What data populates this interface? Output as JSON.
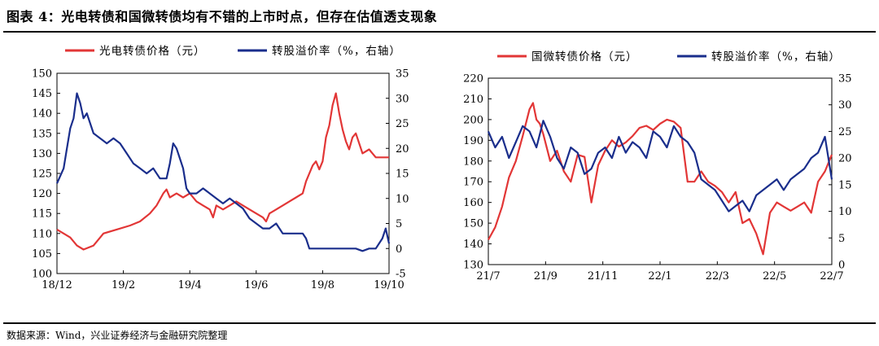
{
  "title": "图表 4：光电转债和国微转债均有不错的上市时点，但存在估值透支现象",
  "source": "数据来源：Wind，兴业证券经济与金融研究院整理",
  "colors": {
    "red": "#E23636",
    "blue": "#1A2E8C"
  },
  "chart_data": [
    {
      "type": "line",
      "x_tick_labels": [
        "18/12",
        "19/2",
        "19/4",
        "19/6",
        "19/8",
        "19/10"
      ],
      "y_left": {
        "range": [
          100,
          150
        ],
        "ticks": [
          "100",
          "105",
          "110",
          "115",
          "120",
          "125",
          "130",
          "135",
          "140",
          "145",
          "150"
        ]
      },
      "y_right": {
        "range": [
          -5,
          35
        ],
        "ticks": [
          "-5",
          "0",
          "5",
          "10",
          "15",
          "20",
          "25",
          "30",
          "35"
        ]
      },
      "legend_position": "top",
      "series": [
        {
          "name": "光电转债价格（元）",
          "axis": "left",
          "color": "#E23636",
          "x": [
            0,
            0.02,
            0.04,
            0.06,
            0.08,
            0.11,
            0.14,
            0.18,
            0.22,
            0.25,
            0.28,
            0.3,
            0.32,
            0.33,
            0.34,
            0.36,
            0.38,
            0.4,
            0.42,
            0.44,
            0.46,
            0.47,
            0.48,
            0.5,
            0.52,
            0.54,
            0.56,
            0.58,
            0.6,
            0.62,
            0.63,
            0.64,
            0.66,
            0.68,
            0.7,
            0.72,
            0.74,
            0.75,
            0.76,
            0.77,
            0.78,
            0.79,
            0.8,
            0.81,
            0.82,
            0.83,
            0.84,
            0.85,
            0.86,
            0.87,
            0.88,
            0.89,
            0.9,
            0.92,
            0.94,
            0.96,
            0.98,
            1.0
          ],
          "y": [
            111,
            110,
            109,
            107,
            106,
            107,
            110,
            111,
            112,
            113,
            115,
            117,
            120,
            121,
            119,
            120,
            119,
            120,
            118,
            117,
            116,
            114,
            117,
            116,
            117,
            118,
            117,
            116,
            115,
            114,
            113,
            115,
            116,
            117,
            118,
            119,
            120,
            123,
            125,
            127,
            128,
            126,
            128,
            134,
            137,
            142,
            145,
            140,
            136,
            133,
            131,
            134,
            135,
            130,
            131,
            129,
            129,
            129
          ]
        },
        {
          "name": "转股溢价率（%，右轴）",
          "axis": "right",
          "color": "#1A2E8C",
          "x": [
            0,
            0.02,
            0.03,
            0.04,
            0.05,
            0.06,
            0.07,
            0.08,
            0.09,
            0.1,
            0.11,
            0.13,
            0.15,
            0.17,
            0.19,
            0.21,
            0.23,
            0.25,
            0.27,
            0.29,
            0.31,
            0.33,
            0.34,
            0.35,
            0.36,
            0.37,
            0.38,
            0.39,
            0.4,
            0.42,
            0.44,
            0.46,
            0.48,
            0.5,
            0.52,
            0.54,
            0.56,
            0.58,
            0.6,
            0.62,
            0.64,
            0.66,
            0.68,
            0.7,
            0.72,
            0.74,
            0.75,
            0.76,
            0.78,
            0.8,
            0.82,
            0.84,
            0.86,
            0.88,
            0.9,
            0.92,
            0.94,
            0.96,
            0.98,
            0.99,
            1.0
          ],
          "y": [
            13,
            16,
            20,
            24,
            26,
            31,
            29,
            26,
            27,
            25,
            23,
            22,
            21,
            22,
            21,
            19,
            17,
            16,
            15,
            16,
            14,
            14,
            17,
            21,
            20,
            18,
            16,
            12,
            11,
            11,
            12,
            11,
            10,
            9,
            10,
            9,
            8,
            6,
            5,
            4,
            4,
            5,
            3,
            3,
            3,
            3,
            2,
            0,
            0,
            0,
            0,
            0,
            0,
            0,
            0,
            -0.5,
            0,
            0,
            2,
            4,
            1
          ]
        }
      ]
    },
    {
      "type": "line",
      "x_tick_labels": [
        "21/7",
        "21/9",
        "21/11",
        "22/1",
        "22/3",
        "22/5",
        "22/7"
      ],
      "y_left": {
        "range": [
          130,
          220
        ],
        "ticks": [
          "130",
          "140",
          "150",
          "160",
          "170",
          "180",
          "190",
          "200",
          "210",
          "220"
        ]
      },
      "y_right": {
        "range": [
          0,
          35
        ],
        "ticks": [
          "0",
          "5",
          "10",
          "15",
          "20",
          "25",
          "30",
          "35"
        ]
      },
      "legend_position": "top",
      "series": [
        {
          "name": "国微转债价格（元）",
          "axis": "left",
          "color": "#E23636",
          "x": [
            0,
            0.02,
            0.04,
            0.06,
            0.08,
            0.1,
            0.12,
            0.13,
            0.14,
            0.15,
            0.16,
            0.18,
            0.2,
            0.22,
            0.24,
            0.26,
            0.28,
            0.3,
            0.32,
            0.34,
            0.36,
            0.38,
            0.4,
            0.42,
            0.44,
            0.46,
            0.48,
            0.5,
            0.52,
            0.54,
            0.56,
            0.58,
            0.6,
            0.62,
            0.64,
            0.66,
            0.68,
            0.7,
            0.72,
            0.74,
            0.76,
            0.78,
            0.8,
            0.82,
            0.84,
            0.86,
            0.88,
            0.9,
            0.92,
            0.94,
            0.96,
            0.98,
            1.0
          ],
          "y": [
            142,
            148,
            158,
            172,
            180,
            192,
            205,
            208,
            200,
            198,
            193,
            180,
            185,
            175,
            170,
            183,
            182,
            160,
            178,
            185,
            190,
            187,
            189,
            192,
            196,
            197,
            195,
            198,
            200,
            199,
            196,
            170,
            170,
            175,
            170,
            168,
            165,
            160,
            165,
            150,
            152,
            145,
            135,
            155,
            160,
            158,
            156,
            158,
            160,
            155,
            170,
            175,
            183
          ]
        },
        {
          "name": "转股溢价率（%，右轴）",
          "axis": "right",
          "color": "#1A2E8C",
          "x": [
            0,
            0.02,
            0.04,
            0.06,
            0.08,
            0.1,
            0.12,
            0.14,
            0.16,
            0.18,
            0.2,
            0.22,
            0.24,
            0.26,
            0.28,
            0.3,
            0.32,
            0.34,
            0.36,
            0.38,
            0.4,
            0.42,
            0.44,
            0.46,
            0.48,
            0.5,
            0.52,
            0.54,
            0.56,
            0.58,
            0.6,
            0.62,
            0.64,
            0.66,
            0.68,
            0.7,
            0.72,
            0.74,
            0.76,
            0.78,
            0.8,
            0.82,
            0.84,
            0.86,
            0.88,
            0.9,
            0.92,
            0.94,
            0.96,
            0.98,
            1.0
          ],
          "y": [
            25,
            22,
            24,
            20,
            23,
            26,
            25,
            22,
            27,
            24,
            20,
            18,
            22,
            21,
            17,
            18,
            21,
            22,
            20,
            24,
            21,
            23,
            22,
            20,
            25,
            24,
            22,
            26,
            24,
            23,
            21,
            16,
            15,
            14,
            12,
            10,
            11,
            12,
            10,
            13,
            14,
            15,
            16,
            14,
            16,
            17,
            18,
            20,
            21,
            24,
            16
          ]
        }
      ]
    }
  ]
}
